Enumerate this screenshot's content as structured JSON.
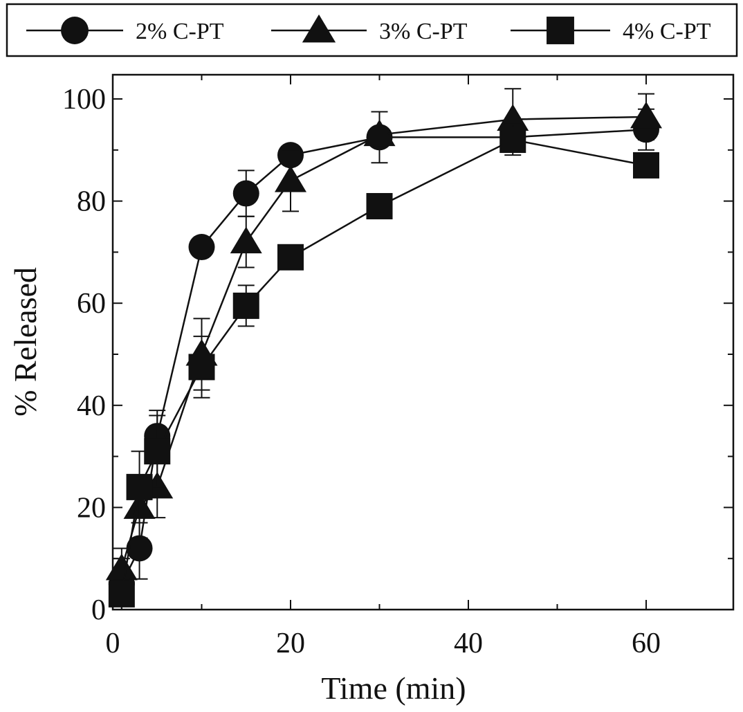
{
  "chart_data": {
    "type": "line",
    "title": "",
    "xlabel": "Time (min)",
    "ylabel": "% Released",
    "xlim": [
      0,
      70
    ],
    "ylim": [
      0,
      100
    ],
    "x_ticks": [
      0,
      20,
      40,
      60
    ],
    "y_ticks": [
      0,
      20,
      40,
      60,
      80,
      100
    ],
    "legend_position": "top",
    "series": [
      {
        "name": "2% C-PT",
        "marker": "circle",
        "x": [
          1,
          3,
          5,
          10,
          15,
          20,
          30,
          45,
          60
        ],
        "y": [
          5,
          12,
          34,
          71,
          81.5,
          89,
          92.5,
          92.5,
          94
        ],
        "err": [
          5,
          6,
          5,
          0,
          4.5,
          0,
          5,
          0,
          4
        ]
      },
      {
        "name": "3% C-PT",
        "marker": "triangle",
        "x": [
          1,
          3,
          5,
          10,
          15,
          20,
          30,
          45,
          60
        ],
        "y": [
          8,
          20,
          24,
          50,
          72,
          84,
          93,
          96,
          96.5
        ],
        "err": [
          4,
          6,
          6,
          7,
          5,
          6,
          0,
          6,
          4.5
        ]
      },
      {
        "name": "4% C-PT",
        "marker": "square",
        "x": [
          1,
          3,
          5,
          10,
          15,
          20,
          30,
          45,
          60
        ],
        "y": [
          3,
          24,
          31,
          47.5,
          59.5,
          69,
          79,
          92,
          87
        ],
        "err": [
          3,
          7,
          7,
          6,
          4,
          0,
          0,
          3,
          0
        ]
      }
    ],
    "colors": {
      "line": "#111111",
      "marker": "#111111",
      "background": "#ffffff"
    }
  }
}
